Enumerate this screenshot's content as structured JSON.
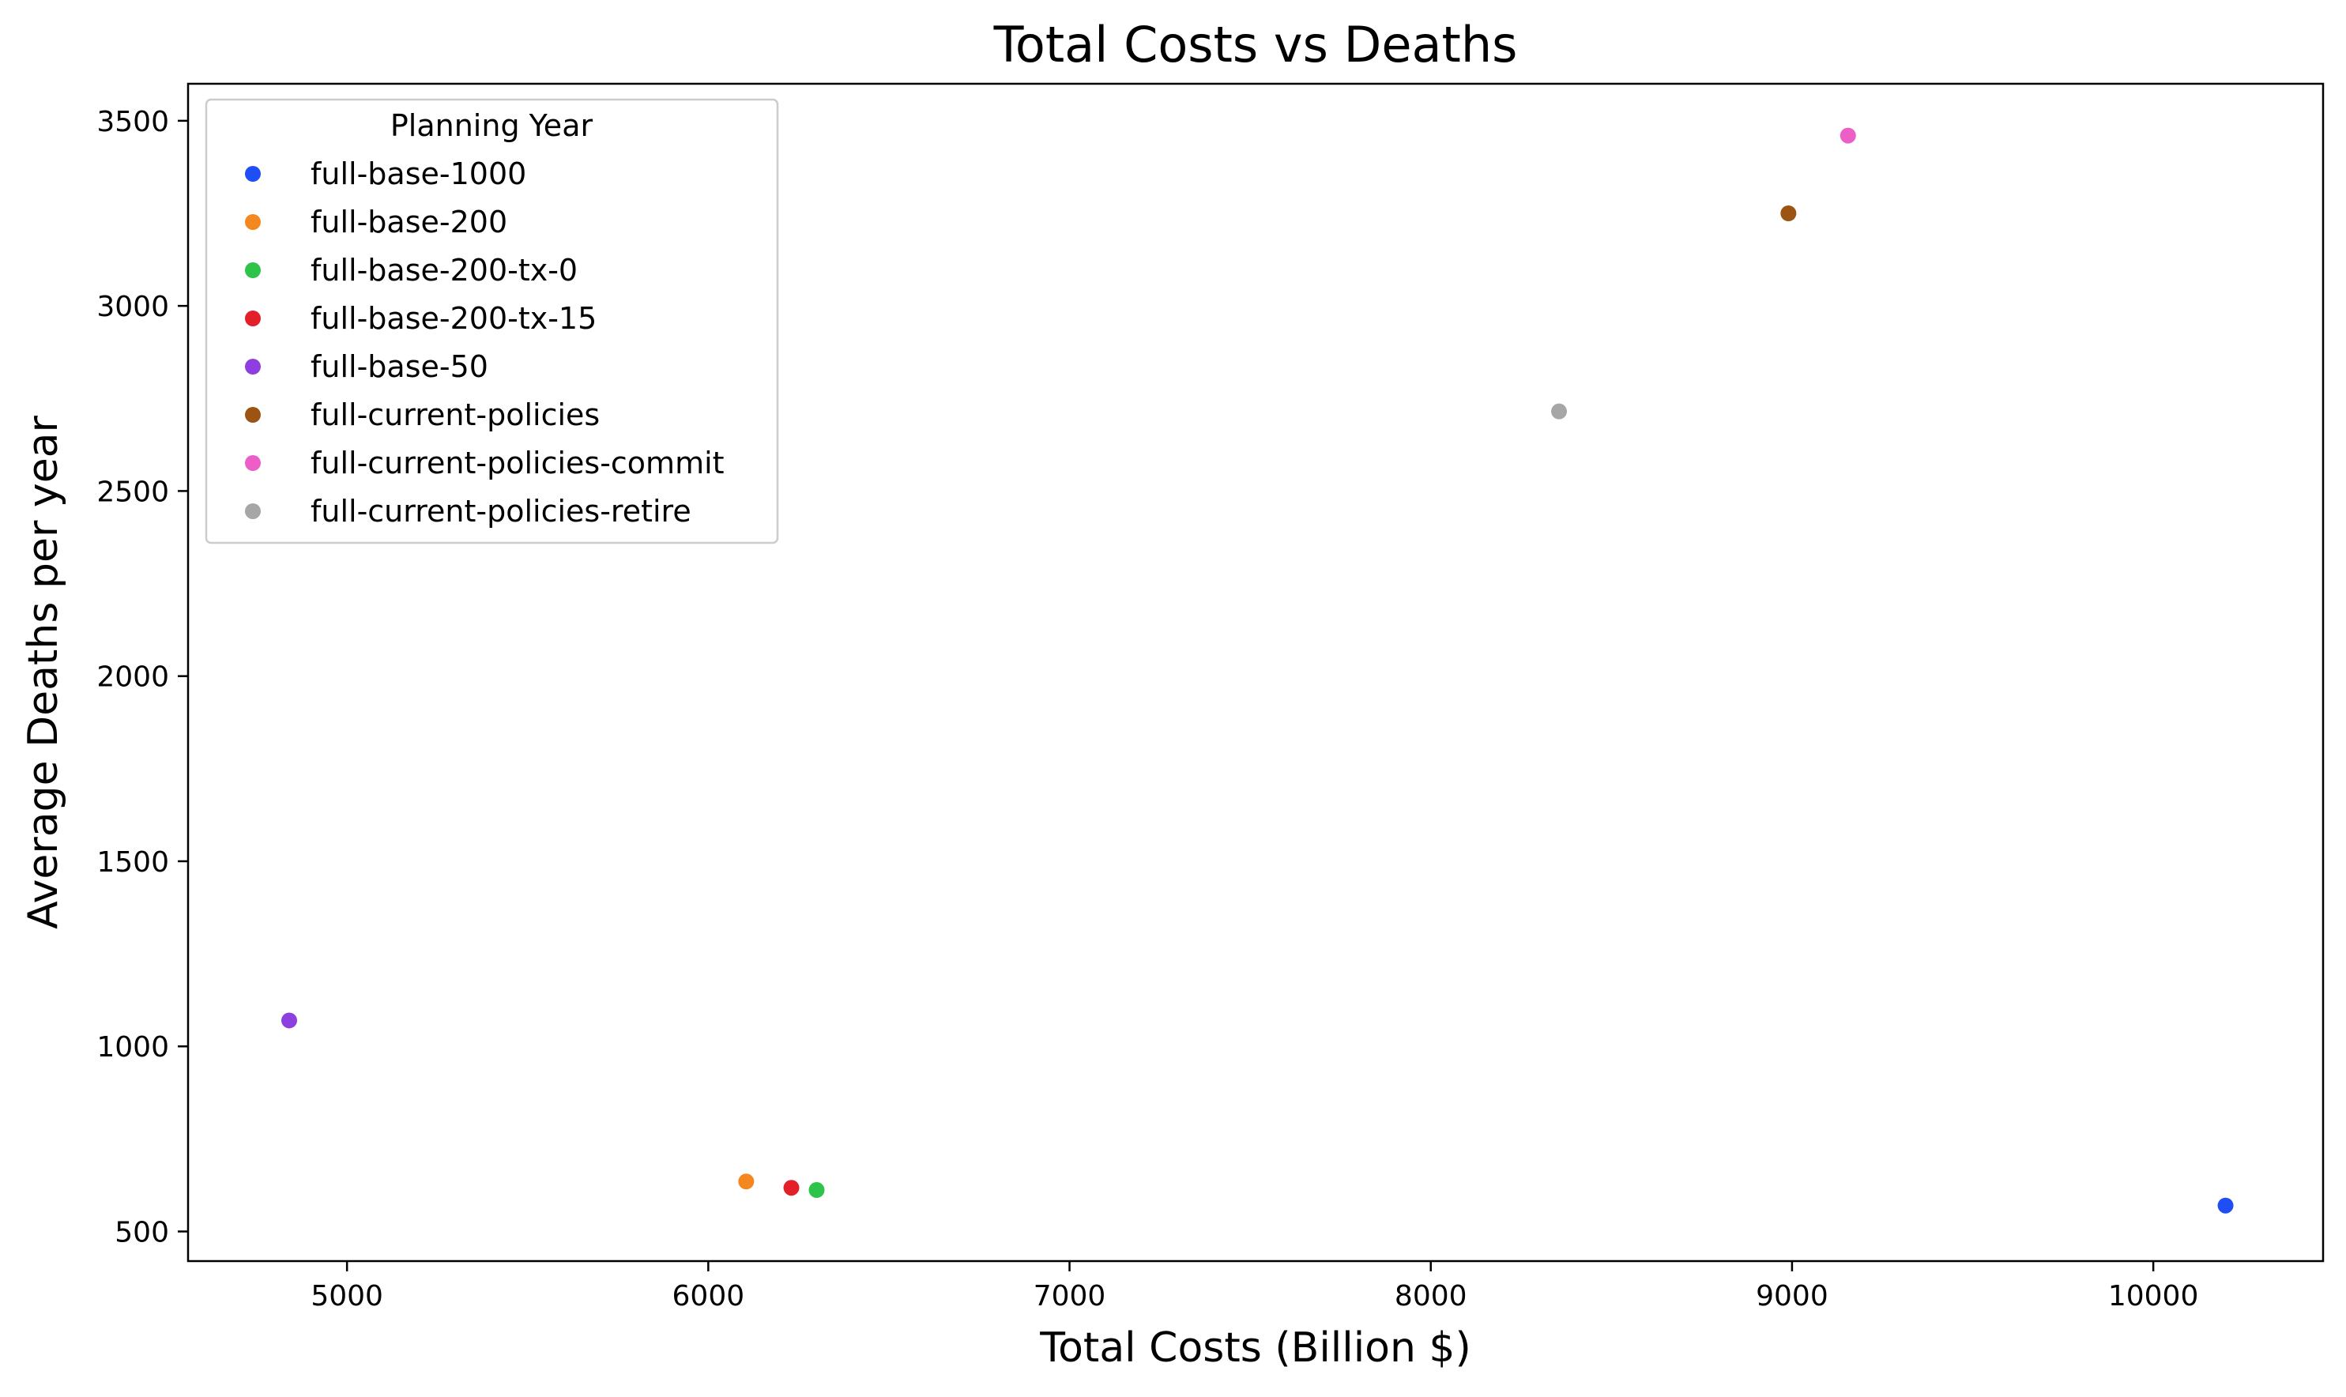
{
  "chart_data": {
    "type": "scatter",
    "title": "Total Costs vs Deaths",
    "xlabel": "Total Costs (Billion $)",
    "ylabel": "Average Deaths per year",
    "xlim": [
      4560,
      10470
    ],
    "ylim": [
      420,
      3600
    ],
    "xticks": [
      5000,
      6000,
      7000,
      8000,
      9000,
      10000
    ],
    "yticks": [
      500,
      1000,
      1500,
      2000,
      2500,
      3000,
      3500
    ],
    "grid": false,
    "legend": {
      "title": "Planning Year",
      "placement": "upper-left"
    },
    "series": [
      {
        "name": "full-base-1000",
        "color": "#1f4ef5",
        "points": [
          {
            "x": 10200,
            "y": 570
          }
        ]
      },
      {
        "name": "full-base-200",
        "color": "#f5871f",
        "points": [
          {
            "x": 6105,
            "y": 635
          }
        ]
      },
      {
        "name": "full-base-200-tx-0",
        "color": "#2ec44a",
        "points": [
          {
            "x": 6300,
            "y": 612
          }
        ]
      },
      {
        "name": "full-base-200-tx-15",
        "color": "#e3202a",
        "points": [
          {
            "x": 6230,
            "y": 618
          }
        ]
      },
      {
        "name": "full-base-50",
        "color": "#8e3fe0",
        "points": [
          {
            "x": 4840,
            "y": 1070
          }
        ]
      },
      {
        "name": "full-current-policies",
        "color": "#9c5414",
        "points": [
          {
            "x": 8990,
            "y": 3250
          }
        ]
      },
      {
        "name": "full-current-policies-commit",
        "color": "#ec5fc6",
        "points": [
          {
            "x": 9155,
            "y": 3460
          }
        ]
      },
      {
        "name": "full-current-policies-retire",
        "color": "#a6a6a6",
        "points": [
          {
            "x": 8355,
            "y": 2715
          }
        ]
      }
    ]
  }
}
